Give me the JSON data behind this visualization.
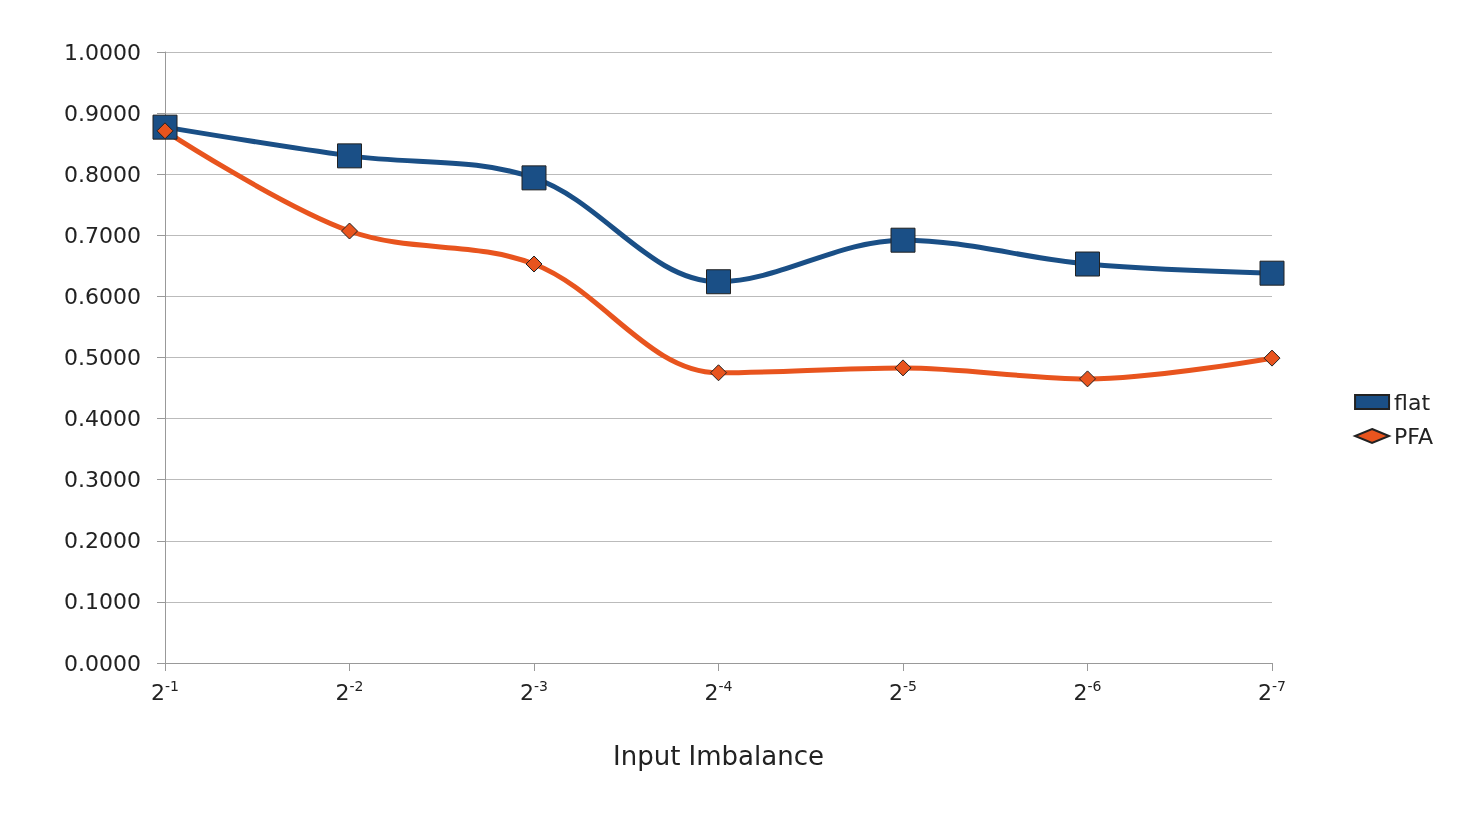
{
  "chart_data": {
    "type": "line",
    "xlabel": "Input Imbalance",
    "categories": [
      "2$^{-1}$",
      "2$^{-2}$",
      "2$^{-3}$",
      "2$^{-4}$",
      "2$^{-5}$",
      "2$^{-6}$",
      "2$^{-7}$"
    ],
    "series": [
      {
        "name": "flat",
        "color": "#1a4f86",
        "marker": "square",
        "values": [
          0.877,
          0.83,
          0.794,
          0.624,
          0.692,
          0.653,
          0.638
        ]
      },
      {
        "name": "PFA",
        "color": "#e8541e",
        "marker": "diamond",
        "values": [
          0.871,
          0.707,
          0.653,
          0.475,
          0.483,
          0.465,
          0.499
        ]
      }
    ],
    "ylim": [
      0,
      1
    ],
    "yticks": [
      {
        "value": 0,
        "label": "0.0000"
      },
      {
        "value": 0.1,
        "label": "0.1000"
      },
      {
        "value": 0.2,
        "label": "0.2000"
      },
      {
        "value": 0.3,
        "label": "0.3000"
      },
      {
        "value": 0.4,
        "label": "0.4000"
      },
      {
        "value": 0.5,
        "label": "0.5000"
      },
      {
        "value": 0.6,
        "label": "0.6000"
      },
      {
        "value": 0.7,
        "label": "0.7000"
      },
      {
        "value": 0.8,
        "label": "0.8000"
      },
      {
        "value": 0.9,
        "label": "0.9000"
      },
      {
        "value": 1,
        "label": "1.0000"
      }
    ],
    "grid": "y",
    "legend": "right",
    "line_style": "solid"
  }
}
